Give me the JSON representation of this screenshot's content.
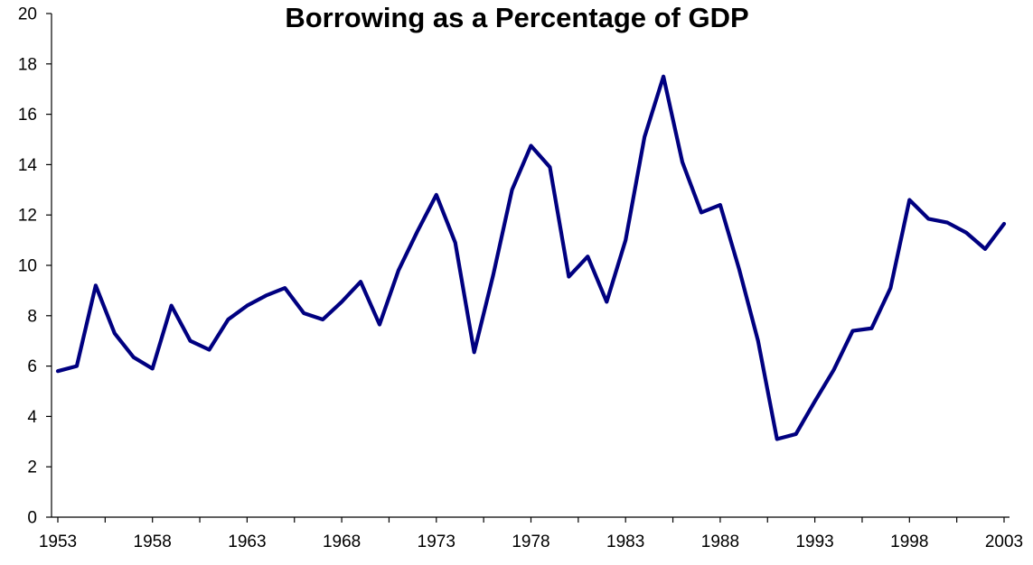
{
  "chart_data": {
    "type": "line",
    "title": "Borrowing as a Percentage of GDP",
    "xlabel": "",
    "ylabel": "",
    "ylim": [
      0,
      20
    ],
    "xlim": [
      1953,
      2003
    ],
    "y_ticks": [
      "0",
      "2",
      "4",
      "6",
      "8",
      "10",
      "12",
      "14",
      "16",
      "18",
      "20"
    ],
    "x_ticks": [
      "1953",
      "1958",
      "1963",
      "1968",
      "1973",
      "1978",
      "1983",
      "1988",
      "1993",
      "1998",
      "2003"
    ],
    "grid": false,
    "legend": "none",
    "line_color": "#000080",
    "x": [
      1953,
      1954,
      1955,
      1956,
      1957,
      1958,
      1959,
      1960,
      1961,
      1962,
      1963,
      1964,
      1965,
      1966,
      1967,
      1968,
      1969,
      1970,
      1971,
      1972,
      1973,
      1974,
      1975,
      1976,
      1977,
      1978,
      1979,
      1980,
      1981,
      1982,
      1983,
      1984,
      1985,
      1986,
      1987,
      1988,
      1989,
      1990,
      1991,
      1992,
      1993,
      1994,
      1995,
      1996,
      1997,
      1998,
      1999,
      2000,
      2001,
      2002,
      2003
    ],
    "series": [
      {
        "values": [
          5.8,
          6.0,
          9.2,
          7.3,
          6.35,
          5.9,
          8.4,
          7.0,
          6.65,
          7.85,
          8.4,
          8.8,
          9.1,
          8.1,
          7.85,
          8.55,
          9.35,
          7.65,
          9.8,
          11.35,
          12.8,
          10.9,
          6.55,
          9.6,
          13.0,
          14.75,
          13.9,
          9.55,
          10.35,
          8.55,
          11.0,
          15.1,
          17.5,
          14.1,
          12.1,
          12.4,
          9.85,
          7.0,
          3.1,
          3.3,
          4.6,
          5.85,
          7.4,
          7.5,
          9.1,
          12.6,
          11.85,
          11.7,
          11.3,
          10.65,
          11.65
        ]
      }
    ]
  }
}
